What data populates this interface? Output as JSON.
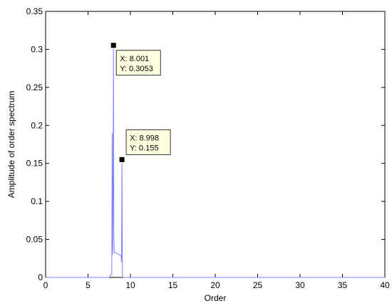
{
  "chart_data": {
    "type": "line",
    "x_label": "Order",
    "y_label": "Amplitude of order spectrum",
    "x": [
      0,
      7.5,
      7.8,
      7.85,
      7.9,
      7.95,
      8.001,
      8.05,
      8.1,
      8.3,
      8.5,
      8.7,
      8.9,
      8.95,
      8.998,
      9.05,
      9.1,
      40
    ],
    "values": [
      0,
      0,
      0.005,
      0.19,
      0.03,
      0.1,
      0.3053,
      0.05,
      0.033,
      0.032,
      0.031,
      0.03,
      0.028,
      0.02,
      0.155,
      0.005,
      0,
      0
    ],
    "color": "#7f7fff",
    "xlim": [
      0,
      40
    ],
    "xticks": [
      0,
      5,
      10,
      15,
      20,
      25,
      30,
      35,
      40
    ],
    "ylim": [
      0,
      0.35
    ],
    "yticks": [
      0,
      0.05,
      0.1,
      0.15,
      0.2,
      0.25,
      0.3,
      0.35
    ],
    "grid": false,
    "datatips": [
      {
        "x": 8.001,
        "y": 0.3053,
        "x_label": "X: 8.001",
        "y_label": "Y: 0.3053"
      },
      {
        "x": 8.998,
        "y": 0.155,
        "x_label": "X: 8.998",
        "y_label": "Y: 0.155"
      }
    ]
  }
}
